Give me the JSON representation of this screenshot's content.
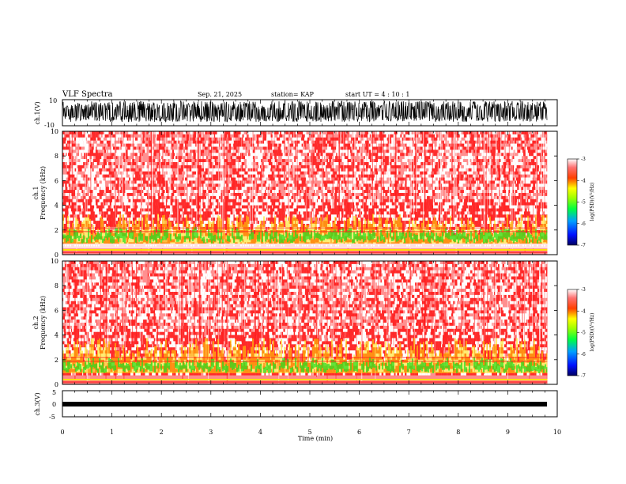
{
  "header": {
    "title": "VLF Spectra",
    "date": "Sep. 21, 2025",
    "station": "station= KAP",
    "start": "start  UT =   4 : 10 : 1"
  },
  "chart_data": [
    {
      "type": "line",
      "name": "ch1-waveform",
      "ylabel": "ch.1(V)",
      "ylim": [
        -10,
        10
      ],
      "yticks": [
        "10",
        "-10"
      ],
      "xlim": [
        0,
        10
      ],
      "description_series": "dense oscillating waveform spanning about -7 to 9 V from 0 to 9.8 min"
    },
    {
      "type": "heatmap",
      "name": "ch1-spectrogram",
      "ylabel": "ch.1\nFrequency (kHz)",
      "ylabel_line1": "ch.1",
      "ylabel_line2": "Frequency  (kHz)",
      "ylim": [
        0,
        10
      ],
      "yticks": [
        "0",
        "2",
        "4",
        "6",
        "8",
        "10"
      ],
      "xlim": [
        0,
        10
      ],
      "data_extent_min": 9.8,
      "colorbar": {
        "label": "log(PSD)(V²/Hz)",
        "range": [
          -7,
          -3
        ],
        "ticks": [
          "-3",
          "-4",
          "-5",
          "-6",
          "-7"
        ]
      }
    },
    {
      "type": "heatmap",
      "name": "ch2-spectrogram",
      "ylabel_line1": "ch.2",
      "ylabel_line2": "Frequency  (kHz)",
      "ylim": [
        0,
        10
      ],
      "yticks": [
        "0",
        "2",
        "4",
        "6",
        "8",
        "10"
      ],
      "xlim": [
        0,
        10
      ],
      "data_extent_min": 9.8,
      "colorbar": {
        "label": "log(PSD)(V²/Hz)",
        "range": [
          -7,
          -3
        ],
        "ticks": [
          "-3",
          "-4",
          "-5",
          "-6",
          "-7"
        ]
      }
    },
    {
      "type": "line",
      "name": "ch3-waveform",
      "ylabel": "ch.3(V)",
      "ylim": [
        -5,
        5
      ],
      "yticks": [
        "5",
        "0",
        "-5"
      ],
      "xlim": [
        0,
        10
      ],
      "description_series": "near-constant trace around -0.5 V"
    }
  ],
  "x_axis": {
    "label": "Time  (min)",
    "ticks": [
      "0",
      "1",
      "2",
      "3",
      "4",
      "5",
      "6",
      "7",
      "8",
      "9",
      "10"
    ]
  },
  "colors": {
    "red": "#ff2020",
    "yellow": "#ffe000",
    "green": "#20e020",
    "line": "#000000"
  }
}
